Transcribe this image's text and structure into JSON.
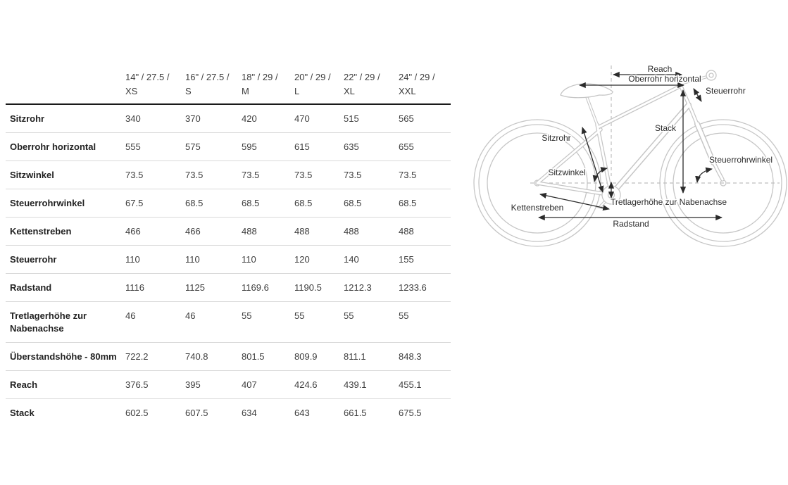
{
  "table": {
    "columns": [
      {
        "line1": "14\" / 27.5 /",
        "line2": "XS"
      },
      {
        "line1": "16\" / 27.5 /",
        "line2": "S"
      },
      {
        "line1": "18\" / 29 /",
        "line2": "M"
      },
      {
        "line1": "20\" / 29 /",
        "line2": "L"
      },
      {
        "line1": "22\" / 29 /",
        "line2": "XL"
      },
      {
        "line1": "24\" / 29 /",
        "line2": "XXL"
      }
    ],
    "rows": [
      {
        "label": "Sitzrohr",
        "values": [
          "340",
          "370",
          "420",
          "470",
          "515",
          "565"
        ]
      },
      {
        "label": "Oberrohr horizontal",
        "values": [
          "555",
          "575",
          "595",
          "615",
          "635",
          "655"
        ]
      },
      {
        "label": "Sitzwinkel",
        "values": [
          "73.5",
          "73.5",
          "73.5",
          "73.5",
          "73.5",
          "73.5"
        ]
      },
      {
        "label": "Steuerrohrwinkel",
        "values": [
          "67.5",
          "68.5",
          "68.5",
          "68.5",
          "68.5",
          "68.5"
        ]
      },
      {
        "label": "Kettenstreben",
        "values": [
          "466",
          "466",
          "488",
          "488",
          "488",
          "488"
        ]
      },
      {
        "label": "Steuerrohr",
        "values": [
          "110",
          "110",
          "110",
          "120",
          "140",
          "155"
        ]
      },
      {
        "label": "Radstand",
        "values": [
          "1116",
          "1125",
          "1169.6",
          "1190.5",
          "1212.3",
          "1233.6"
        ]
      },
      {
        "label": "Tretlagerhöhe zur Nabenachse",
        "values": [
          "46",
          "46",
          "55",
          "55",
          "55",
          "55"
        ]
      },
      {
        "label": "Überstandshöhe - 80mm",
        "values": [
          "722.2",
          "740.8",
          "801.5",
          "809.9",
          "811.1",
          "848.3"
        ]
      },
      {
        "label": "Reach",
        "values": [
          "376.5",
          "395",
          "407",
          "424.6",
          "439.1",
          "455.1"
        ]
      },
      {
        "label": "Stack",
        "values": [
          "602.5",
          "607.5",
          "634",
          "643",
          "661.5",
          "675.5"
        ]
      }
    ]
  },
  "diagram": {
    "labels": {
      "reach": "Reach",
      "oberrohr": "Oberrohr horizontal",
      "steuerrohr": "Steuerrohr",
      "stack": "Stack",
      "sitzrohr": "Sitzrohr",
      "sitzwinkel": "Sitzwinkel",
      "steuerrohrwinkel": "Steuerrohrwinkel",
      "kettenstreben": "Kettenstreben",
      "tretlagerhoehe": "Tretlagerhöhe zur Nabenachse",
      "radstand": "Radstand"
    }
  },
  "colors": {
    "header_rule": "#1a1a1a",
    "row_divider": "#d9d9d9",
    "text": "#3d3d3d",
    "line_art": "#c6c6c6",
    "dimension": "#2b2b2b"
  }
}
